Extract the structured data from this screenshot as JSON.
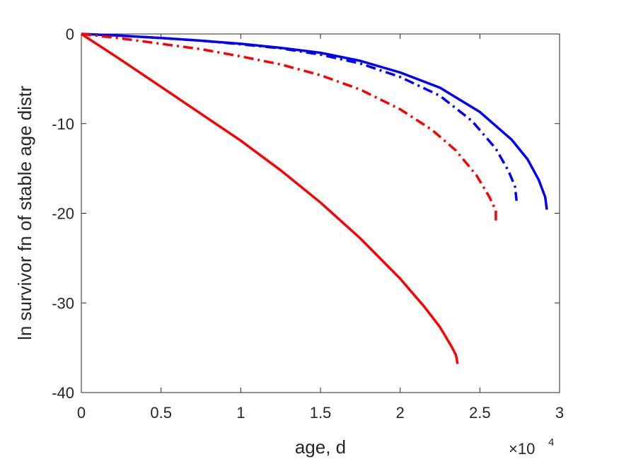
{
  "chart_data": {
    "type": "line",
    "title": "",
    "xlabel": "age, d",
    "ylabel": "ln survivor fn of stable age distr",
    "x_multiplier_label": "×10",
    "x_multiplier_exponent": "4",
    "xlim": [
      0,
      30000
    ],
    "ylim": [
      -40,
      0
    ],
    "xticks": [
      0,
      5000,
      10000,
      15000,
      20000,
      25000,
      30000
    ],
    "xtick_labels": [
      "0",
      "0.5",
      "1",
      "1.5",
      "2",
      "2.5",
      "3"
    ],
    "yticks": [
      0,
      -10,
      -20,
      -30,
      -40
    ],
    "ytick_labels": [
      "0",
      "-10",
      "-20",
      "-30",
      "-40"
    ],
    "grid": false,
    "legend": false,
    "series": [
      {
        "color": "#0000ff",
        "dash": "solid",
        "points": [
          [
            0,
            0
          ],
          [
            2500,
            -0.2
          ],
          [
            5000,
            -0.45
          ],
          [
            7500,
            -0.75
          ],
          [
            10000,
            -1.1
          ],
          [
            12500,
            -1.55
          ],
          [
            15000,
            -2.1
          ],
          [
            17500,
            -3.0
          ],
          [
            20000,
            -4.3
          ],
          [
            22500,
            -6.0
          ],
          [
            25000,
            -8.7
          ],
          [
            27000,
            -11.8
          ],
          [
            28000,
            -14.0
          ],
          [
            28700,
            -16.3
          ],
          [
            29100,
            -18.2
          ],
          [
            29200,
            -19.6
          ]
        ]
      },
      {
        "color": "#0000ff",
        "dash": "dashdot",
        "points": [
          [
            0,
            0
          ],
          [
            2500,
            -0.2
          ],
          [
            5000,
            -0.45
          ],
          [
            7500,
            -0.75
          ],
          [
            10000,
            -1.15
          ],
          [
            12500,
            -1.6
          ],
          [
            15000,
            -2.3
          ],
          [
            17500,
            -3.3
          ],
          [
            20000,
            -4.8
          ],
          [
            22500,
            -6.9
          ],
          [
            24500,
            -9.7
          ],
          [
            26000,
            -12.8
          ],
          [
            26800,
            -15.3
          ],
          [
            27200,
            -17.0
          ],
          [
            27300,
            -18.6
          ]
        ]
      },
      {
        "color": "#ff0000",
        "dash": "dashdot",
        "points": [
          [
            0,
            0
          ],
          [
            2500,
            -0.5
          ],
          [
            5000,
            -1.1
          ],
          [
            7500,
            -1.7
          ],
          [
            10000,
            -2.5
          ],
          [
            12500,
            -3.4
          ],
          [
            15000,
            -4.6
          ],
          [
            17500,
            -6.2
          ],
          [
            20000,
            -8.4
          ],
          [
            22000,
            -10.7
          ],
          [
            23500,
            -13.0
          ],
          [
            24800,
            -15.8
          ],
          [
            25600,
            -18.2
          ],
          [
            26000,
            -19.7
          ],
          [
            26000,
            -20.8
          ]
        ]
      },
      {
        "color": "#ff0000",
        "dash": "solid",
        "points": [
          [
            0,
            0
          ],
          [
            2500,
            -2.9
          ],
          [
            5000,
            -5.9
          ],
          [
            7500,
            -8.9
          ],
          [
            10000,
            -11.9
          ],
          [
            12500,
            -15.2
          ],
          [
            15000,
            -18.8
          ],
          [
            17500,
            -22.8
          ],
          [
            20000,
            -27.3
          ],
          [
            21500,
            -30.4
          ],
          [
            22500,
            -32.7
          ],
          [
            23200,
            -34.8
          ],
          [
            23500,
            -35.8
          ],
          [
            23600,
            -36.8
          ]
        ]
      }
    ]
  }
}
